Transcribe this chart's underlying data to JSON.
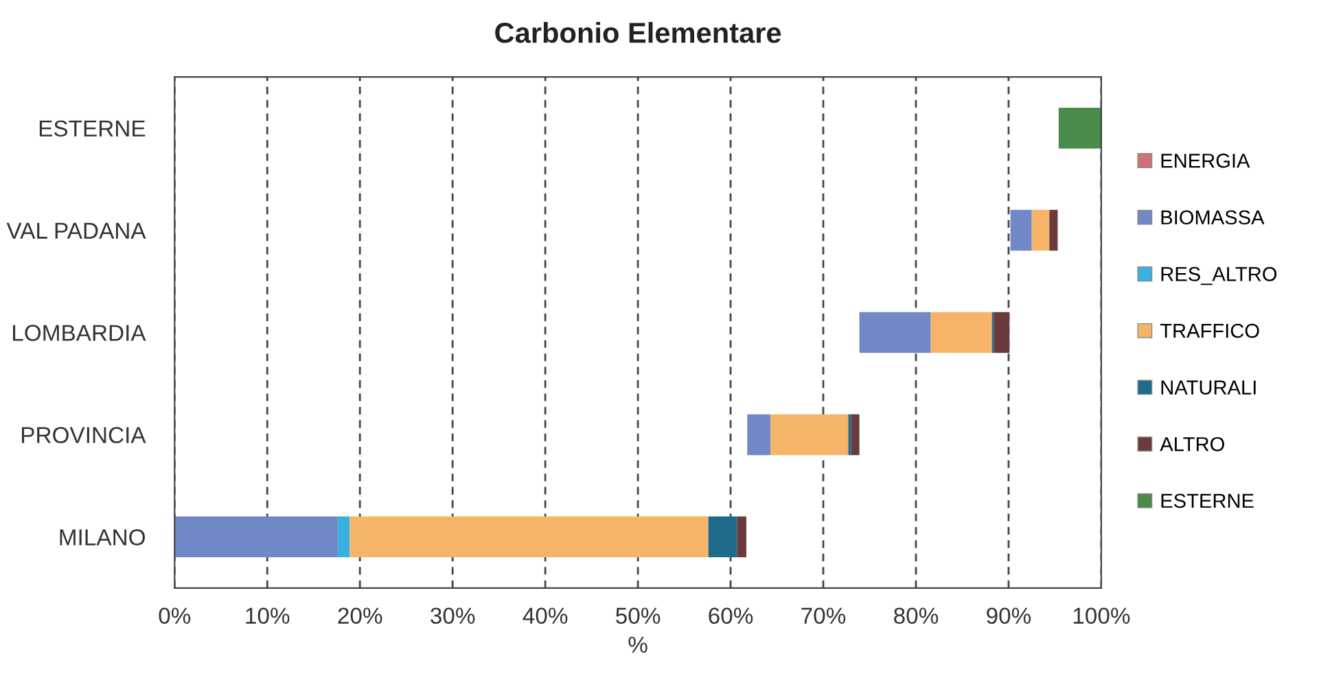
{
  "chart_data": {
    "type": "bar",
    "orientation": "horizontal",
    "title": "Carbonio Elementare",
    "xlabel": "%",
    "categories": [
      "ESTERNE",
      "VAL PADANA",
      "LOMBARDIA",
      "PROVINCIA",
      "MILANO"
    ],
    "series": [
      {
        "name": "ENERGIA",
        "color": "#d4707a",
        "values": [
          null,
          null,
          null,
          null,
          null
        ]
      },
      {
        "name": "BIOMASSA",
        "color": "#7087c8",
        "values": [
          null,
          2.3,
          7.7,
          2.5,
          17.6
        ],
        "base": [
          null,
          90.2,
          73.9,
          61.8,
          0
        ]
      },
      {
        "name": "RES_ALTRO",
        "color": "#3ab0e0",
        "values": [
          null,
          null,
          null,
          null,
          1.3
        ],
        "base": [
          null,
          null,
          null,
          null,
          17.6
        ]
      },
      {
        "name": "TRAFFICO",
        "color": "#f5b468",
        "values": [
          null,
          1.9,
          6.6,
          8.4,
          38.7
        ],
        "base": [
          null,
          92.5,
          81.6,
          64.3,
          18.9
        ]
      },
      {
        "name": "NATURALI",
        "color": "#1f6b8a",
        "values": [
          null,
          null,
          0.2,
          0.3,
          3.1
        ],
        "base": [
          null,
          null,
          88.2,
          72.7,
          57.6
        ]
      },
      {
        "name": "ALTRO",
        "color": "#6b3a3a",
        "values": [
          null,
          0.9,
          1.7,
          0.9,
          1.0
        ],
        "base": [
          null,
          94.4,
          88.4,
          73.0,
          60.7
        ]
      },
      {
        "name": "ESTERNE",
        "color": "#4a8a4a",
        "values": [
          4.6,
          null,
          null,
          null,
          null
        ],
        "base": [
          95.4,
          null,
          null,
          null,
          null
        ]
      }
    ],
    "xlim": [
      0,
      100
    ],
    "xticks": [
      {
        "value": 0,
        "label": "0%"
      },
      {
        "value": 10,
        "label": "10%"
      },
      {
        "value": 20,
        "label": "20%"
      },
      {
        "value": 30,
        "label": "30%"
      },
      {
        "value": 40,
        "label": "40%"
      },
      {
        "value": 50,
        "label": "50%"
      },
      {
        "value": 60,
        "label": "60%"
      },
      {
        "value": 70,
        "label": "70%"
      },
      {
        "value": 80,
        "label": "80%"
      },
      {
        "value": 90,
        "label": "90%"
      },
      {
        "value": 100,
        "label": "100%"
      }
    ],
    "grid": "x",
    "legend": "right"
  }
}
